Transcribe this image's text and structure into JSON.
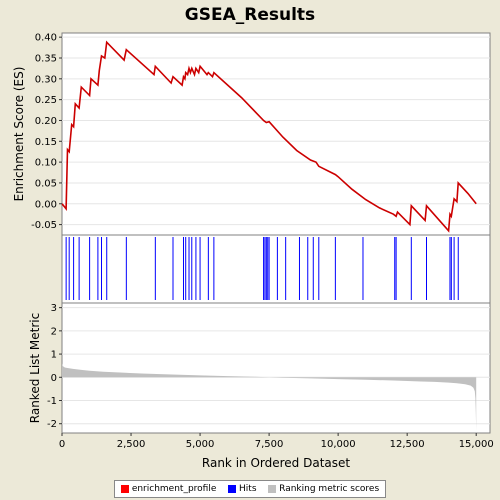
{
  "title": "GSEA_Results",
  "legend": [
    {
      "label": "enrichment_profile",
      "color": "#ff0000"
    },
    {
      "label": "Hits",
      "color": "#0000ff"
    },
    {
      "label": "Ranking metric scores",
      "color": "#c0c0c0"
    }
  ],
  "chart_data": [
    {
      "type": "line",
      "ylabel": "Enrichment Score (ES)",
      "yticks": [
        "0.40",
        "0.35",
        "0.30",
        "0.25",
        "0.20",
        "0.15",
        "0.10",
        "0.05",
        "0.00",
        "-0.05"
      ],
      "ylim": [
        -0.075,
        0.41
      ],
      "xlim": [
        0,
        15500
      ],
      "color": "#cc0000",
      "x": [
        0,
        150,
        200,
        260,
        350,
        420,
        480,
        620,
        700,
        1000,
        1050,
        1300,
        1350,
        1430,
        1550,
        1620,
        2250,
        2330,
        3330,
        3380,
        3950,
        4020,
        4350,
        4400,
        4450,
        4480,
        4550,
        4600,
        4650,
        4700,
        4800,
        4850,
        4950,
        5000,
        5250,
        5300,
        5450,
        5500,
        6500,
        7300,
        7400,
        7500,
        8000,
        8500,
        9000,
        9200,
        9300,
        9900,
        10000,
        10500,
        11000,
        11500,
        12000,
        12100,
        12150,
        12600,
        12650,
        13150,
        13200,
        14000,
        14050,
        14100,
        14200,
        14300,
        14350,
        14700,
        15000
      ],
      "y": [
        0.0,
        -0.012,
        0.13,
        0.125,
        0.19,
        0.185,
        0.24,
        0.23,
        0.28,
        0.26,
        0.3,
        0.285,
        0.32,
        0.355,
        0.35,
        0.388,
        0.345,
        0.37,
        0.31,
        0.33,
        0.29,
        0.305,
        0.285,
        0.305,
        0.3,
        0.315,
        0.31,
        0.325,
        0.315,
        0.325,
        0.31,
        0.325,
        0.315,
        0.33,
        0.31,
        0.315,
        0.305,
        0.315,
        0.255,
        0.2,
        0.195,
        0.197,
        0.16,
        0.128,
        0.105,
        0.1,
        0.09,
        0.07,
        0.065,
        0.035,
        0.01,
        -0.01,
        -0.025,
        -0.03,
        -0.02,
        -0.05,
        -0.005,
        -0.04,
        -0.005,
        -0.065,
        -0.025,
        -0.03,
        0.012,
        0.005,
        0.05,
        0.025,
        0.0
      ]
    },
    {
      "type": "scatter",
      "name": "Hits",
      "color": "#0000ff",
      "x": [
        150,
        260,
        420,
        620,
        1000,
        1300,
        1430,
        1620,
        2330,
        3380,
        4020,
        4400,
        4480,
        4600,
        4700,
        4850,
        5000,
        5300,
        5500,
        7300,
        7350,
        7400,
        7450,
        7500,
        7800,
        8100,
        8600,
        8900,
        9100,
        9300,
        9900,
        10900,
        12050,
        12100,
        12650,
        13200,
        14050,
        14100,
        14200,
        14350
      ]
    },
    {
      "type": "area",
      "ylabel": "Ranked List Metric",
      "xlabel": "Rank in Ordered Dataset",
      "color": "#c0c0c0",
      "yticks": [
        "3",
        "2",
        "1",
        "0",
        "-1",
        "-2"
      ],
      "ylim": [
        -2.4,
        3.2
      ],
      "xticks": [
        "0",
        "2,500",
        "5,000",
        "7,500",
        "10,000",
        "12,500",
        "15,000"
      ],
      "xlim": [
        0,
        15500
      ],
      "x": [
        0,
        30,
        100,
        200,
        400,
        700,
        1000,
        1500,
        2000,
        3000,
        4000,
        5000,
        6000,
        7000,
        7500,
        8000,
        9000,
        10000,
        11000,
        12000,
        12500,
        13000,
        13500,
        14000,
        14300,
        14600,
        14800,
        14900,
        14950,
        14970,
        14985,
        15000
      ],
      "values": [
        0.6,
        0.48,
        0.42,
        0.4,
        0.36,
        0.32,
        0.28,
        0.24,
        0.21,
        0.16,
        0.12,
        0.08,
        0.05,
        0.02,
        0.0,
        -0.02,
        -0.05,
        -0.08,
        -0.11,
        -0.14,
        -0.16,
        -0.18,
        -0.2,
        -0.23,
        -0.26,
        -0.3,
        -0.36,
        -0.45,
        -0.6,
        -0.9,
        -1.5,
        -2.3
      ]
    }
  ]
}
